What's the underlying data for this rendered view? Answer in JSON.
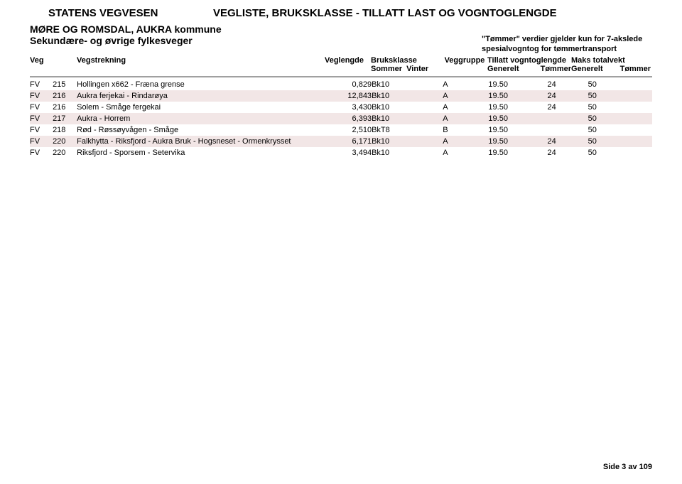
{
  "header": {
    "org": "STATENS VEGVESEN",
    "title": "VEGLISTE, BRUKSKLASSE - TILLATT LAST OG VOGNTOGLENGDE",
    "region": "MØRE OG ROMSDAL, AUKRA kommune",
    "subhead": "Sekundære- og øvrige fylkesveger",
    "tommer_note_1": "\"Tømmer\" verdier gjelder kun for 7-akslede",
    "tommer_note_2": "spesialvogntog for tømmertransport"
  },
  "columns": {
    "veg": "Veg",
    "vegstrekning": "Vegstrekning",
    "veglengde": "Veglengde",
    "bruksklasse": "Bruksklasse",
    "bruks_sub1": "Sommer",
    "bruks_sub2": "Vinter",
    "veggruppe": "Veggruppe",
    "tvl": "Tillatt vogntoglengde",
    "tvl_sub1": "Generelt",
    "tvl_sub2": "Tømmer",
    "mtv": "Maks totalvekt",
    "mtv_sub1": "Generelt",
    "mtv_sub2": "Tømmer"
  },
  "rows": [
    {
      "veg": "FV",
      "nr": "215",
      "strn": "Hollingen x662 - Fræna grense",
      "len": "0,829",
      "bruk": "Bk10",
      "grp": "A",
      "gen": "19.50",
      "tom": "24",
      "mgen": "50",
      "mtom": ""
    },
    {
      "veg": "FV",
      "nr": "216",
      "strn": "Aukra ferjekai - Rindarøya",
      "len": "12,843",
      "bruk": "Bk10",
      "grp": "A",
      "gen": "19.50",
      "tom": "24",
      "mgen": "50",
      "mtom": ""
    },
    {
      "veg": "FV",
      "nr": "216",
      "strn": "Solem - Småge fergekai",
      "len": "3,430",
      "bruk": "Bk10",
      "grp": "A",
      "gen": "19.50",
      "tom": "24",
      "mgen": "50",
      "mtom": ""
    },
    {
      "veg": "FV",
      "nr": "217",
      "strn": "Aukra - Horrem",
      "len": "6,393",
      "bruk": "Bk10",
      "grp": "A",
      "gen": "19.50",
      "tom": "",
      "mgen": "50",
      "mtom": ""
    },
    {
      "veg": "FV",
      "nr": "218",
      "strn": "Rød - Røssøyvågen - Småge",
      "len": "2,510",
      "bruk": "BkT8",
      "grp": "B",
      "gen": "19.50",
      "tom": "",
      "mgen": "50",
      "mtom": ""
    },
    {
      "veg": "FV",
      "nr": "220",
      "strn": "Falkhytta - Riksfjord - Aukra Bruk - Hogsneset - Ormenkrysset",
      "len": "6,171",
      "bruk": "Bk10",
      "grp": "A",
      "gen": "19.50",
      "tom": "24",
      "mgen": "50",
      "mtom": ""
    },
    {
      "veg": "FV",
      "nr": "220",
      "strn": "Riksfjord - Sporsem - Setervika",
      "len": "3,494",
      "bruk": "Bk10",
      "grp": "A",
      "gen": "19.50",
      "tom": "24",
      "mgen": "50",
      "mtom": ""
    }
  ],
  "footer": {
    "page": "Side 3 av 109"
  }
}
